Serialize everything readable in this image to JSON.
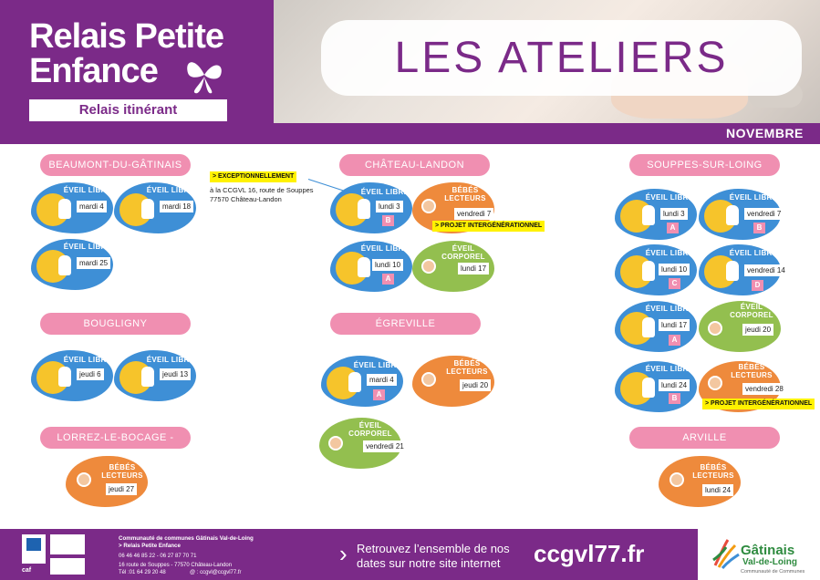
{
  "header": {
    "logo_line1": "Relais Petite",
    "logo_line2": "Enfance",
    "subtitle": "Relais itinérant",
    "title": "LES ATELIERS",
    "month": "NOVEMBRE"
  },
  "colors": {
    "purple": "#7b2a88",
    "pink": "#f08fb1",
    "blue": "#3e8fd6",
    "orange": "#ee8a3c",
    "green": "#93bf4f",
    "highlight": "#fff200"
  },
  "labels": {
    "eveil_libre": "ÉVEIL LIBRE",
    "bebes_line1": "BÉBÉS",
    "bebes_line2": "LECTEURS",
    "corporel_line1": "ÉVEIL",
    "corporel_line2": "CORPOREL"
  },
  "towns": {
    "beaumont": "BEAUMONT-DU-GÂTINAIS",
    "bougligny": "BOUGLIGNY",
    "lorrez": "LORREZ-LE-BOCAGE - PRÉAUX",
    "chateau": "CHÂTEAU-LANDON",
    "egreville": "ÉGREVILLE",
    "souppes": "SOUPPES-SUR-LOING",
    "arville": "ARVILLE"
  },
  "notes": {
    "exceptionnellement": "> EXCEPTIONNELLEMENT",
    "addr1": "à  la CCGVL 16, route de Souppes",
    "addr2": "77570 Château-Landon",
    "intergen": "> PROJET INTERGÉNÉRATIONNEL"
  },
  "ateliers": {
    "b1": {
      "date": "mardi 4"
    },
    "b2": {
      "date": "mardi 18"
    },
    "b3": {
      "date": "mardi 25"
    },
    "bo1": {
      "date": "jeudi 6"
    },
    "bo2": {
      "date": "jeudi 13"
    },
    "lo1": {
      "date": "jeudi 27"
    },
    "c1": {
      "date": "lundi 3",
      "group": "B"
    },
    "c2": {
      "date": "vendredi 7"
    },
    "c3": {
      "date": "lundi 10",
      "group": "A"
    },
    "c4": {
      "date": "lundi 17"
    },
    "e1": {
      "date": "mardi 4",
      "group": "A"
    },
    "e2": {
      "date": "jeudi 20"
    },
    "e3": {
      "date": "vendredi 21"
    },
    "s1": {
      "date": "lundi 3",
      "group": "A"
    },
    "s2": {
      "date": "vendredi 7",
      "group": "B"
    },
    "s3": {
      "date": "lundi 10",
      "group": "C"
    },
    "s4": {
      "date": "vendredi 14",
      "group": "D"
    },
    "s5": {
      "date": "lundi 17",
      "group": "A"
    },
    "s6": {
      "date": "jeudi 20"
    },
    "s7": {
      "date": "lundi 24",
      "group": "B"
    },
    "s8": {
      "date": "vendredi 28"
    },
    "a1": {
      "date": "lundi 24"
    }
  },
  "footer": {
    "org1": "Communauté de communes Gâtinais Val-de-Loing",
    "org2": "> Relais Petite Enfance",
    "phones": "06 46 46 85 22 - 06 27 87 70 71",
    "address": "16 route de Souppes - 77570 Château-Landon",
    "tel": "Tél :01 64 29 20 48",
    "email": "@ : ccgvl@ccgvl77.fr",
    "caf": "caf",
    "retrouvez1": "Retrouvez l’ensemble de nos",
    "retrouvez2": "dates sur notre site internet",
    "site": "ccgvl77.fr",
    "brand1": "Gâtinais",
    "brand2": "Val-de-Loing",
    "brand3": "Communauté de Communes"
  }
}
